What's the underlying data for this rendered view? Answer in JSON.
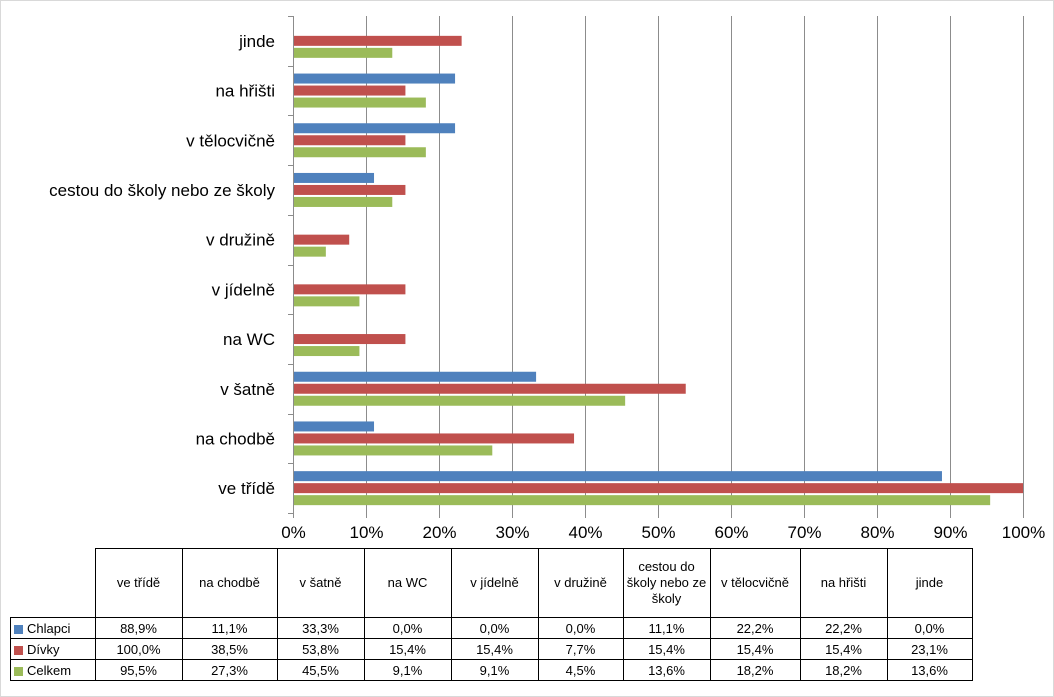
{
  "chart_data": {
    "type": "bar",
    "orientation": "horizontal",
    "categories": [
      "ve třídě",
      "na chodbě",
      "v šatně",
      "na WC",
      "v jídelně",
      "v družině",
      "cestou do školy nebo ze školy",
      "v tělocvičně",
      "na hřišti",
      "jinde"
    ],
    "series": [
      {
        "name": "Chlapci",
        "color": "#4f81bd",
        "values": [
          88.9,
          11.1,
          33.3,
          0.0,
          0.0,
          0.0,
          11.1,
          22.2,
          22.2,
          0.0
        ],
        "labels": [
          "88,9%",
          "11,1%",
          "33,3%",
          "0,0%",
          "0,0%",
          "0,0%",
          "11,1%",
          "22,2%",
          "22,2%",
          "0,0%"
        ]
      },
      {
        "name": "Dívky",
        "color": "#c0504d",
        "values": [
          100.0,
          38.5,
          53.8,
          15.4,
          15.4,
          7.7,
          15.4,
          15.4,
          15.4,
          23.1
        ],
        "labels": [
          "100,0%",
          "38,5%",
          "53,8%",
          "15,4%",
          "15,4%",
          "7,7%",
          "15,4%",
          "15,4%",
          "15,4%",
          "23,1%"
        ]
      },
      {
        "name": "Celkem",
        "color": "#9bbb59",
        "values": [
          95.5,
          27.3,
          45.5,
          9.1,
          9.1,
          4.5,
          13.6,
          18.2,
          18.2,
          13.6
        ],
        "labels": [
          "95,5%",
          "27,3%",
          "45,5%",
          "9,1%",
          "9,1%",
          "4,5%",
          "13,6%",
          "18,2%",
          "18,2%",
          "13,6%"
        ]
      }
    ],
    "xlim": [
      0,
      100
    ],
    "xticks": [
      "0%",
      "10%",
      "20%",
      "30%",
      "40%",
      "50%",
      "60%",
      "70%",
      "80%",
      "90%",
      "100%"
    ],
    "table_column_headers": [
      "ve třídě",
      "na chodbě",
      "v šatně",
      "na WC",
      "v jídelně",
      "v družině",
      "cestou do školy nebo ze školy",
      "v tělocvičně",
      "na hřišti",
      "jinde"
    ],
    "grid": true,
    "legend": "data-table"
  }
}
